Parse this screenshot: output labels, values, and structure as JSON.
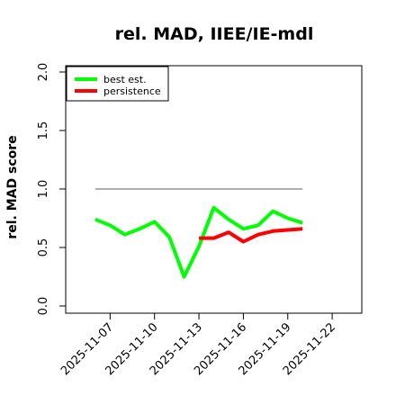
{
  "chart_data": {
    "type": "line",
    "title": "rel. MAD, IIEE/IE-mdl",
    "ylabel": "rel. MAD score",
    "xlabel": "",
    "ylim": [
      0,
      2
    ],
    "xlim": [
      "2025-11-04",
      "2025-11-24"
    ],
    "yticks": [
      "0.0",
      "0.5",
      "1.0",
      "1.5",
      "2.0"
    ],
    "xticks": [
      "2025-11-07",
      "2025-11-10",
      "2025-11-13",
      "2025-11-16",
      "2025-11-19",
      "2025-11-22"
    ],
    "grid": false,
    "legend_position": "top-left",
    "reference_line": {
      "y": 1.0,
      "x_start": "2025-11-06",
      "x_end": "2025-11-20",
      "color": "#808080"
    },
    "series": [
      {
        "name": "best est.",
        "color": "#00ff00",
        "x": [
          "2025-11-06",
          "2025-11-07",
          "2025-11-08",
          "2025-11-09",
          "2025-11-10",
          "2025-11-11",
          "2025-11-12",
          "2025-11-13",
          "2025-11-14",
          "2025-11-15",
          "2025-11-16",
          "2025-11-17",
          "2025-11-18",
          "2025-11-19",
          "2025-11-20"
        ],
        "values": [
          0.74,
          0.69,
          0.61,
          0.66,
          0.72,
          0.59,
          0.25,
          0.51,
          0.84,
          0.74,
          0.66,
          0.69,
          0.81,
          0.75,
          0.71
        ]
      },
      {
        "name": "persistence",
        "color": "#ff0000",
        "x": [
          "2025-11-13",
          "2025-11-14",
          "2025-11-15",
          "2025-11-16",
          "2025-11-17",
          "2025-11-18",
          "2025-11-19",
          "2025-11-20"
        ],
        "values": [
          0.58,
          0.58,
          0.63,
          0.55,
          0.61,
          0.64,
          0.65,
          0.66
        ]
      }
    ]
  }
}
